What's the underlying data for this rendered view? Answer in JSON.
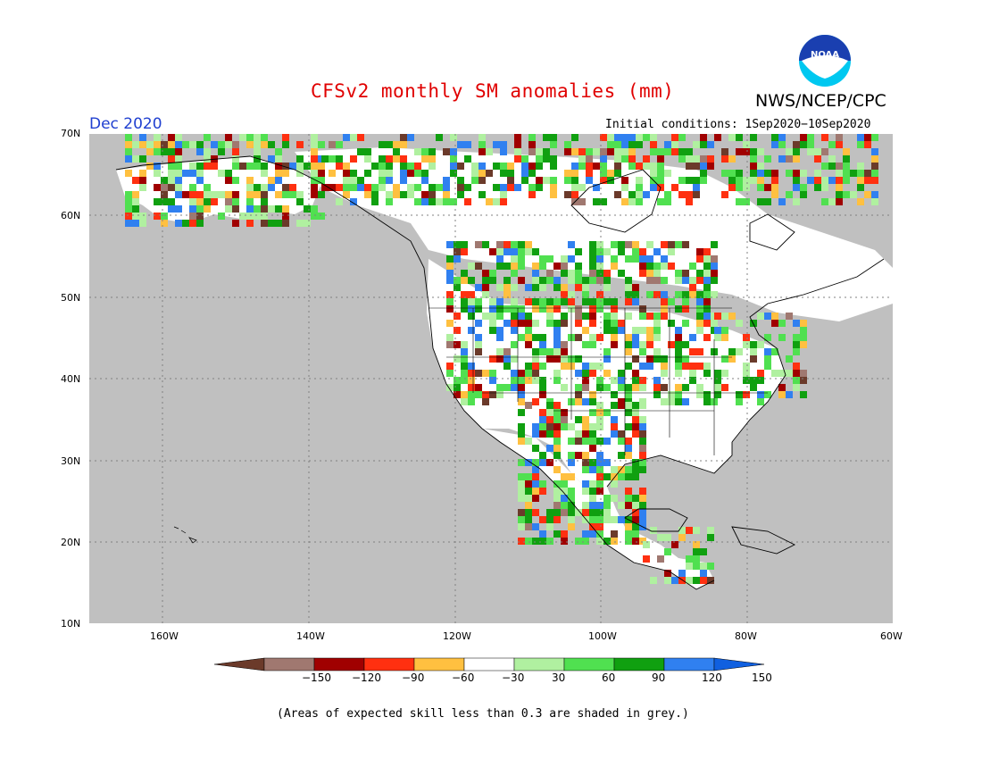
{
  "header": {
    "title": "CFSv2 monthly SM anomalies (mm)",
    "month": "Dec 2020",
    "agency": "NWS/NCEP/CPC",
    "initial_conditions": "Initial conditions: 1Sep2020−10Sep2020",
    "logo_text": "NOAA"
  },
  "axes": {
    "lat_labels": [
      "70N",
      "60N",
      "50N",
      "40N",
      "30N",
      "20N",
      "10N"
    ],
    "lon_labels": [
      "160W",
      "140W",
      "120W",
      "100W",
      "80W",
      "60W"
    ]
  },
  "colorbar": {
    "labels": [
      "−150",
      "−120",
      "−90",
      "−60",
      "−30",
      "30",
      "60",
      "90",
      "120",
      "150"
    ],
    "colors": [
      "#6b3a2a",
      "#a07870",
      "#a00000",
      "#ff3010",
      "#ffc040",
      "#ffffff",
      "#b0f0a0",
      "#50e050",
      "#10a010",
      "#3080f0",
      "#1060e0"
    ]
  },
  "footnote": "(Areas of expected skill less than 0.3 are shaded in grey.)",
  "colors": {
    "grey": "#c0c0c0",
    "title": "#e00000",
    "month": "#2040d0"
  }
}
